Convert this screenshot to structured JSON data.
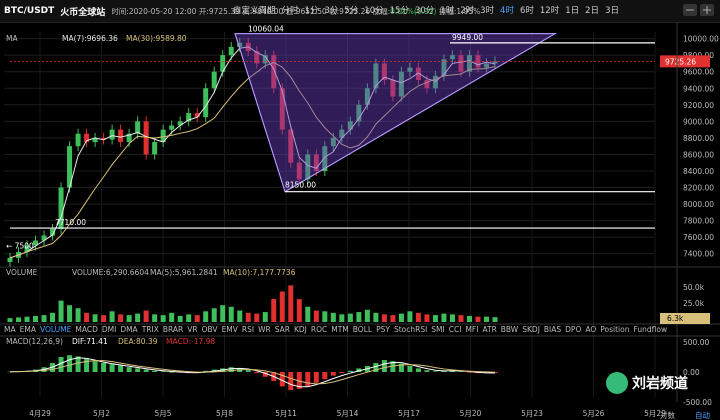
{
  "header": {
    "pair": "BTC/USDT",
    "exchange": "火币全球站",
    "datetime": "时间:2020-05-20 12:00",
    "open": "开:9725.39",
    "high": "高:9840.00",
    "low": "低:9651.50",
    "close": "收:9725.26",
    "change_label": "涨幅:",
    "change_value": "0.01%(0.92)",
    "amplitude": "振幅:1.95%",
    "timeframes": [
      "自定义周期",
      "分时",
      "1分",
      "3分",
      "5分",
      "10分",
      "15分",
      "30分",
      "1时",
      "2时",
      "3时",
      "4时",
      "6时",
      "12时",
      "1日",
      "2日",
      "3日"
    ],
    "active_timeframe": "4时"
  },
  "price_panel": {
    "ma_label": "MA",
    "ma7": "MA(7):9696.36",
    "ma30": "MA(30):9589.80"
  },
  "volume_panel": {
    "label": "VOLUME",
    "vol": "VOLUME:6,290.6604",
    "ma5": "MA(5):5,961.2841",
    "ma10": "MA(10):7,177.7736"
  },
  "macd_panel": {
    "label": "MACD(12,26,9)",
    "dif": "DIF:71.41",
    "dea": "DEA:80.39",
    "macd": "MACD:-17.98"
  },
  "indicators": [
    "MA",
    "EMA",
    "VOLUME",
    "MACD",
    "DMI",
    "DMA",
    "TRIX",
    "BRAR",
    "VR",
    "OBV",
    "EMV",
    "RSI",
    "WR",
    "SAR",
    "KDJ",
    "ROC",
    "MTM",
    "BOLL",
    "PSY",
    "StochRSI",
    "SMI",
    "CCI",
    "MFI",
    "ATR",
    "BBW",
    "SKDJ",
    "BIAS",
    "DPO",
    "AO",
    "Position",
    "Fundflow"
  ],
  "selected_indicator": "VOLUME",
  "watermark": "刘岩频道",
  "bottom_right": {
    "auto": "自动",
    "log": "对数"
  },
  "colors": {
    "up": "#3fbf5c",
    "down": "#e03030",
    "ma7": "#e8e8e8",
    "ma30": "#d9c07a",
    "wedge": "#6a3fc0",
    "accent": "#4aa3ff",
    "price_tag": "#e03030",
    "vol_tag": "#d9c07a"
  },
  "chart_data": [
    {
      "type": "line",
      "name": "price",
      "x_ticks": [
        "4月29",
        "5月2",
        "5月5",
        "5月8",
        "5月11",
        "5月14",
        "5月17",
        "5月20",
        "5月23",
        "5月26",
        "5月29"
      ],
      "y_ticks": [
        7400,
        7600,
        7800,
        8000,
        8200,
        8400,
        8600,
        8800,
        9000,
        9200,
        9400,
        9600,
        9800,
        10000
      ],
      "ylim": [
        7300,
        10080
      ],
      "close_series": [
        7350,
        7420,
        7500,
        7560,
        7620,
        7700,
        8200,
        8700,
        8850,
        8750,
        8800,
        8780,
        8900,
        8750,
        8850,
        9000,
        8600,
        8750,
        8900,
        8950,
        9000,
        9100,
        9050,
        9400,
        9600,
        9800,
        9900,
        9950,
        9850,
        9700,
        9800,
        9400,
        8900,
        8500,
        8300,
        8600,
        8400,
        8700,
        8800,
        8900,
        9000,
        9200,
        9400,
        9700,
        9500,
        9300,
        9600,
        9650,
        9500,
        9400,
        9550,
        9750,
        9800,
        9600,
        9800,
        9650,
        9700,
        9725
      ],
      "annotations": {
        "high_label": "10060.04",
        "low_label": "8150.00",
        "recent_high_label": "9949.00",
        "support_label": "7710.00",
        "left_label": "← 7500"
      },
      "last_price_tag": "9725.26"
    },
    {
      "type": "bar",
      "name": "volume",
      "y_ticks": [
        "50.0k",
        "25.0k"
      ],
      "last_tag": "6.3k",
      "values_k": [
        5,
        6,
        7,
        8,
        9,
        12,
        28,
        22,
        18,
        12,
        10,
        9,
        14,
        10,
        9,
        11,
        15,
        10,
        9,
        12,
        8,
        10,
        9,
        14,
        18,
        22,
        20,
        15,
        12,
        11,
        13,
        30,
        40,
        48,
        30,
        20,
        15,
        14,
        12,
        10,
        11,
        13,
        16,
        12,
        10,
        9,
        11,
        14,
        12,
        10,
        9,
        11,
        10,
        9,
        8,
        7,
        7,
        6.3
      ]
    },
    {
      "type": "bar",
      "name": "macd",
      "y_ticks": [
        "500.00",
        "0.00",
        "-500.00"
      ],
      "values": [
        5,
        10,
        20,
        40,
        80,
        150,
        250,
        280,
        260,
        220,
        180,
        150,
        130,
        110,
        80,
        60,
        40,
        20,
        10,
        0,
        -10,
        -20,
        -10,
        20,
        40,
        60,
        80,
        60,
        30,
        -20,
        -80,
        -150,
        -240,
        -300,
        -280,
        -240,
        -180,
        -120,
        -60,
        -20,
        20,
        60,
        100,
        150,
        200,
        180,
        140,
        100,
        60,
        30,
        10,
        20,
        30,
        10,
        -10,
        -20,
        -18,
        -17.98
      ],
      "dif": 71.41,
      "dea": 80.39
    }
  ]
}
